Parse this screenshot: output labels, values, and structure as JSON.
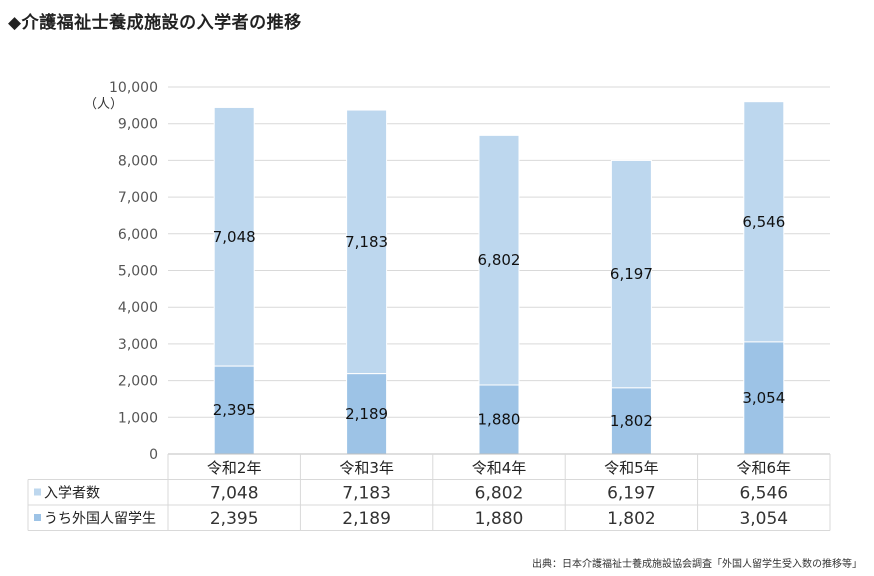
{
  "header": {
    "title": "◆介護福祉士養成施設の入学者の推移"
  },
  "source_note": "出典：日本介護福祉士養成施設協会調査「外国人留学生受入数の推移等」",
  "chart_data": {
    "type": "bar",
    "stacked": true,
    "categories": [
      "令和2年",
      "令和3年",
      "令和4年",
      "令和5年",
      "令和6年"
    ],
    "y_unit_label": "（人）",
    "ylim": [
      0,
      10000
    ],
    "yticks": [
      0,
      1000,
      2000,
      3000,
      4000,
      5000,
      6000,
      7000,
      8000,
      9000,
      10000
    ],
    "ytick_labels": [
      "0",
      "1,000",
      "2,000",
      "3,000",
      "4,000",
      "5,000",
      "6,000",
      "7,000",
      "8,000",
      "9,000",
      "10,000"
    ],
    "grid": true,
    "series": [
      {
        "name": "入学者数",
        "values": [
          7048,
          7183,
          6802,
          6197,
          6546
        ],
        "labels": [
          "7,048",
          "7,183",
          "6,802",
          "6,197",
          "6,546"
        ],
        "color": "#bdd7ee"
      },
      {
        "name": "うち外国人留学生",
        "values": [
          2395,
          2189,
          1880,
          1802,
          3054
        ],
        "labels": [
          "2,395",
          "2,189",
          "1,880",
          "1,802",
          "3,054"
        ],
        "color": "#9dc3e6"
      }
    ],
    "legend_placement": "data-table rows below the chart"
  }
}
